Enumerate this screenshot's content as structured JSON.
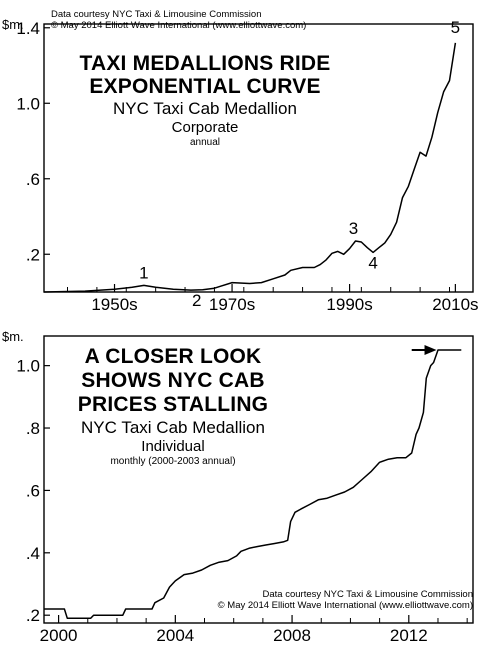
{
  "chart_data": [
    {
      "type": "line",
      "unit_label": "$m.",
      "title_lines": [
        "TAXI MEDALLIONS RIDE",
        "EXPONENTIAL CURVE"
      ],
      "subtitle": "NYC Taxi Cab Medallion",
      "category": "Corporate",
      "frequency": "annual",
      "credit_lines": [
        "Data courtesy NYC Taxi & Limousine Commission",
        "© May 2014 Elliott Wave International (www.elliottwave.com)"
      ],
      "xlim": [
        1943,
        2016
      ],
      "ylim": [
        0.0,
        1.42
      ],
      "y_ticks": [
        {
          "value": 0.2,
          "label": ".2"
        },
        {
          "value": 0.6,
          "label": ".6"
        },
        {
          "value": 1.0,
          "label": "1.0"
        },
        {
          "value": 1.4,
          "label": "1.4"
        }
      ],
      "x_ticks": [
        {
          "value": 1955,
          "label": "1950s"
        },
        {
          "value": 1975,
          "label": "1970s"
        },
        {
          "value": 1995,
          "label": "1990s"
        },
        {
          "value": 2013,
          "label": "2010s"
        }
      ],
      "x_minor_ticks": [
        1947,
        1952,
        1957,
        1962,
        1967,
        1972,
        1977,
        1982,
        1987,
        1992,
        1997,
        2002,
        2007,
        2012
      ],
      "series": [
        {
          "x": [
            1943,
            1950,
            1955,
            1958,
            1960,
            1962,
            1965,
            1968,
            1970,
            1972,
            1973,
            1975,
            1978,
            1980,
            1982,
            1984,
            1985,
            1987,
            1989,
            1990,
            1991,
            1992,
            1993,
            1994,
            1995,
            1996,
            1997,
            1998,
            1999,
            2000,
            2001,
            2002,
            2003,
            2004,
            2005,
            2006,
            2007,
            2008,
            2009,
            2010,
            2011,
            2012,
            2013
          ],
          "y": [
            0.0,
            0.005,
            0.015,
            0.025,
            0.035,
            0.025,
            0.015,
            0.01,
            0.012,
            0.02,
            0.03,
            0.05,
            0.045,
            0.05,
            0.07,
            0.09,
            0.115,
            0.13,
            0.13,
            0.145,
            0.17,
            0.205,
            0.215,
            0.2,
            0.23,
            0.27,
            0.265,
            0.235,
            0.21,
            0.235,
            0.26,
            0.305,
            0.37,
            0.5,
            0.56,
            0.65,
            0.74,
            0.72,
            0.82,
            0.95,
            1.06,
            1.12,
            1.32
          ]
        }
      ],
      "annotations": [
        {
          "label": "1",
          "x": 1960,
          "y": 0.035
        },
        {
          "label": "2",
          "x": 1969,
          "y": 0.01
        },
        {
          "label": "3",
          "x": 1996,
          "y": 0.27
        },
        {
          "label": "4",
          "x": 1999,
          "y": 0.21
        },
        {
          "label": "5",
          "x": 2013,
          "y": 1.32
        }
      ]
    },
    {
      "type": "line",
      "unit_label": "$m.",
      "title_lines": [
        "A CLOSER LOOK",
        "SHOWS NYC CAB",
        "PRICES STALLING"
      ],
      "subtitle": "NYC Taxi Cab Medallion",
      "category": "Individual",
      "frequency": "monthly (2000-2003 annual)",
      "credit_lines": [
        "Data courtesy NYC Taxi & Limousine Commission",
        "© May 2014 Elliott Wave International (www.elliottwave.com)"
      ],
      "xlim": [
        1999.5,
        2014.2
      ],
      "ylim": [
        0.175,
        1.095
      ],
      "y_ticks": [
        {
          "value": 0.2,
          "label": ".2"
        },
        {
          "value": 0.4,
          "label": ".4"
        },
        {
          "value": 0.6,
          "label": ".6"
        },
        {
          "value": 0.8,
          "label": ".8"
        },
        {
          "value": 1.0,
          "label": "1.0"
        }
      ],
      "x_ticks": [
        {
          "value": 2000,
          "label": "2000"
        },
        {
          "value": 2004,
          "label": "2004"
        },
        {
          "value": 2008,
          "label": "2008"
        },
        {
          "value": 2012,
          "label": "2012"
        }
      ],
      "x_minor_ticks": [
        2001,
        2002,
        2003,
        2005,
        2006,
        2007,
        2009,
        2010,
        2011,
        2013,
        2014
      ],
      "series": [
        {
          "x": [
            1999.5,
            2000.2,
            2000.3,
            2001.1,
            2001.2,
            2002.2,
            2002.3,
            2003.2,
            2003.3,
            2003.6,
            2003.8,
            2004.0,
            2004.3,
            2004.6,
            2004.9,
            2005.2,
            2005.5,
            2005.8,
            2006.1,
            2006.25,
            2006.4,
            2006.55,
            2006.8,
            2007.1,
            2007.4,
            2007.7,
            2007.85,
            2007.95,
            2008.1,
            2008.3,
            2008.6,
            2008.9,
            2009.2,
            2009.5,
            2009.8,
            2010.1,
            2010.4,
            2010.7,
            2011.0,
            2011.3,
            2011.6,
            2011.9,
            2012.1,
            2012.25,
            2012.35,
            2012.5,
            2012.6,
            2012.75,
            2012.85,
            2013.0,
            2013.2,
            2013.5,
            2013.8
          ],
          "y": [
            0.22,
            0.22,
            0.19,
            0.19,
            0.2,
            0.2,
            0.22,
            0.22,
            0.24,
            0.255,
            0.29,
            0.31,
            0.33,
            0.335,
            0.345,
            0.36,
            0.37,
            0.375,
            0.39,
            0.405,
            0.41,
            0.415,
            0.42,
            0.425,
            0.43,
            0.435,
            0.44,
            0.5,
            0.53,
            0.54,
            0.555,
            0.57,
            0.575,
            0.585,
            0.595,
            0.61,
            0.635,
            0.66,
            0.69,
            0.7,
            0.705,
            0.705,
            0.72,
            0.78,
            0.8,
            0.85,
            0.96,
            1.0,
            1.01,
            1.05,
            1.05,
            1.05,
            1.05
          ]
        }
      ],
      "arrow": {
        "direction": "right",
        "x_from": 2012.1,
        "x_to": 2012.95,
        "y": 1.05
      }
    }
  ]
}
